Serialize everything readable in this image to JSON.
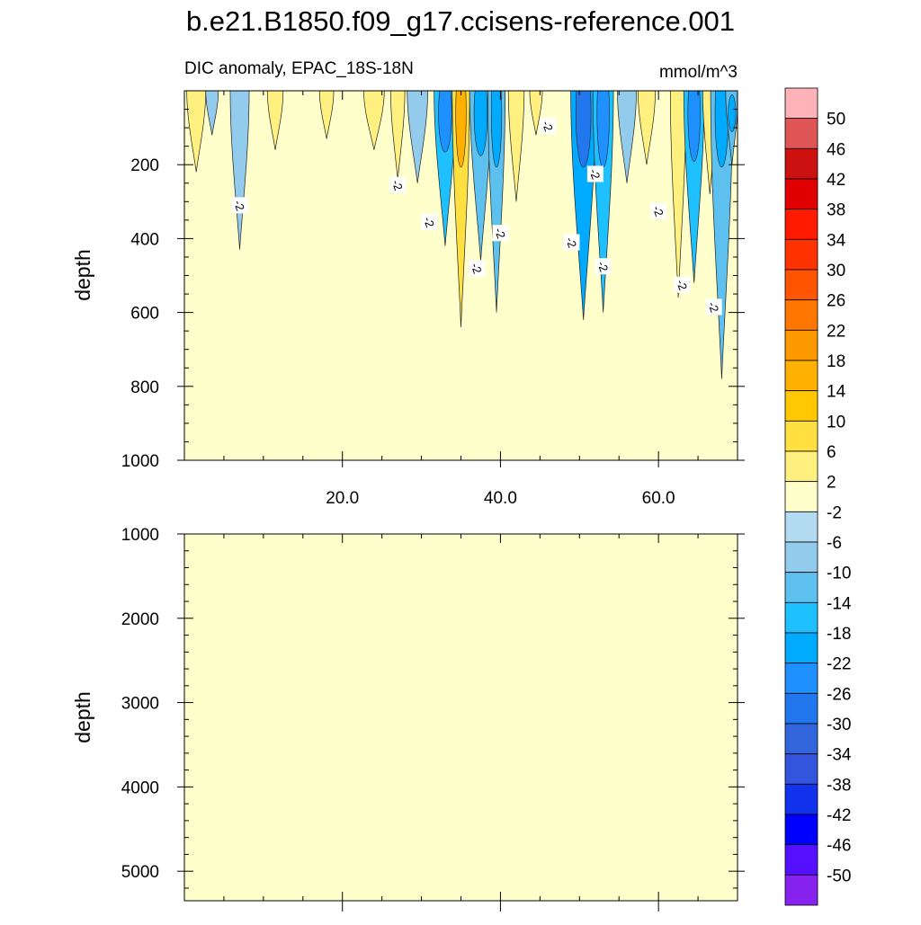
{
  "chart_data": [
    {
      "type": "heatmap",
      "title": "b.e21.B1850.f09_g17.ccisens-reference.001",
      "left_string": "DIC anomaly, EPAC_18S-18N",
      "right_string": "mmol/m^3",
      "xlabel": "",
      "ylabel": "depth",
      "xlim": [
        0,
        70
      ],
      "ylim": [
        1000,
        0
      ],
      "xticks": [
        20,
        40,
        60
      ],
      "xtick_labels": [
        "20.0",
        "40.0",
        "60.0"
      ],
      "yticks": [
        200,
        400,
        600,
        800,
        1000
      ],
      "ytick_labels": [
        "200",
        "400",
        "600",
        "800",
        "1000"
      ],
      "background_value_range": "-2 to 2",
      "contour_labels": [
        {
          "text": "-2",
          "x": 7,
          "y": 310
        },
        {
          "text": "-2",
          "x": 27,
          "y": 255
        },
        {
          "text": "-2",
          "x": 31,
          "y": 355
        },
        {
          "text": "-2",
          "x": 37,
          "y": 480
        },
        {
          "text": "-2",
          "x": 40,
          "y": 385
        },
        {
          "text": "-2",
          "x": 46,
          "y": 95
        },
        {
          "text": "-2",
          "x": 49,
          "y": 410
        },
        {
          "text": "-2",
          "x": 52,
          "y": 225
        },
        {
          "text": "-2",
          "x": 53,
          "y": 475
        },
        {
          "text": "-2",
          "x": 60,
          "y": 325
        },
        {
          "text": "-2",
          "x": 63,
          "y": 525
        },
        {
          "text": "-2",
          "x": 67,
          "y": 585
        }
      ],
      "anomaly_bands": [
        {
          "x": 1.5,
          "max_depth": 220,
          "value": 6,
          "halfwidth": 1.2
        },
        {
          "x": 3.5,
          "max_depth": 120,
          "value": -6,
          "halfwidth": 0.8
        },
        {
          "x": 7.0,
          "max_depth": 430,
          "value": -6,
          "halfwidth": 1.2
        },
        {
          "x": 11.5,
          "max_depth": 160,
          "value": 6,
          "halfwidth": 1.0
        },
        {
          "x": 18.0,
          "max_depth": 130,
          "value": 6,
          "halfwidth": 0.9
        },
        {
          "x": 24.0,
          "max_depth": 160,
          "value": 6,
          "halfwidth": 1.3
        },
        {
          "x": 27.0,
          "max_depth": 240,
          "value": 6,
          "halfwidth": 0.9
        },
        {
          "x": 29.5,
          "max_depth": 250,
          "value": -6,
          "halfwidth": 1.3
        },
        {
          "x": 33.0,
          "max_depth": 420,
          "value": -14,
          "halfwidth": 1.4
        },
        {
          "x": 35.0,
          "max_depth": 640,
          "value": 10,
          "halfwidth": 1.1
        },
        {
          "x": 37.5,
          "max_depth": 460,
          "value": -10,
          "halfwidth": 1.4
        },
        {
          "x": 39.5,
          "max_depth": 600,
          "value": -10,
          "halfwidth": 1.1
        },
        {
          "x": 42.0,
          "max_depth": 300,
          "value": 6,
          "halfwidth": 1.0
        },
        {
          "x": 44.5,
          "max_depth": 120,
          "value": 6,
          "halfwidth": 0.8
        },
        {
          "x": 50.5,
          "max_depth": 620,
          "value": -18,
          "halfwidth": 1.6
        },
        {
          "x": 53.0,
          "max_depth": 600,
          "value": -14,
          "halfwidth": 1.3
        },
        {
          "x": 56.0,
          "max_depth": 250,
          "value": -6,
          "halfwidth": 1.2
        },
        {
          "x": 58.5,
          "max_depth": 200,
          "value": 6,
          "halfwidth": 1.1
        },
        {
          "x": 62.5,
          "max_depth": 560,
          "value": 6,
          "halfwidth": 1.0
        },
        {
          "x": 64.5,
          "max_depth": 520,
          "value": -14,
          "halfwidth": 1.3
        },
        {
          "x": 66.5,
          "max_depth": 280,
          "value": 6,
          "halfwidth": 0.9
        },
        {
          "x": 68.0,
          "max_depth": 780,
          "value": -10,
          "halfwidth": 1.4
        },
        {
          "x": 69.3,
          "max_depth": 200,
          "value": -10,
          "halfwidth": 0.8
        }
      ]
    },
    {
      "type": "heatmap",
      "ylabel": "depth",
      "xlim": [
        0,
        70
      ],
      "ylim": [
        5350,
        1000
      ],
      "yticks": [
        1000,
        2000,
        3000,
        4000,
        5000
      ],
      "ytick_labels": [
        "1000",
        "2000",
        "3000",
        "4000",
        "5000"
      ],
      "background_value_range": "-2 to 2"
    },
    {
      "type": "colorbar",
      "levels": [
        "50",
        "46",
        "42",
        "38",
        "34",
        "30",
        "26",
        "22",
        "18",
        "14",
        "10",
        "6",
        "2",
        "-2",
        "-6",
        "-10",
        "-14",
        "-18",
        "-22",
        "-26",
        "-30",
        "-34",
        "-38",
        "-42",
        "-46",
        "-50"
      ],
      "colors_top_to_bottom": [
        "#ffb3b8",
        "#e05555",
        "#cc1111",
        "#e00000",
        "#ff1a00",
        "#ff3300",
        "#ff5500",
        "#ff7700",
        "#ff9900",
        "#ffb000",
        "#ffc800",
        "#ffe040",
        "#fff080",
        "#ffffcc",
        "#b3dcf2",
        "#92cbec",
        "#5ec0ef",
        "#1ec0ff",
        "#00aaff",
        "#1e90ff",
        "#2277ee",
        "#3366dd",
        "#3355dd",
        "#1133ee",
        "#0000ff",
        "#5511ff",
        "#8822ee"
      ]
    }
  ]
}
